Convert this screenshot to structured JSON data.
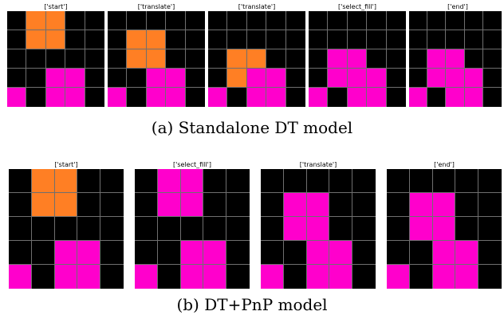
{
  "colors": {
    "0": "#000000",
    "1": "#ff7f24",
    "2": "#ff00cc"
  },
  "rows": [
    {
      "caption": "(a) Standalone DT model",
      "panels": [
        {
          "title": "['start']",
          "grid": [
            [
              0,
              1,
              1,
              0,
              0
            ],
            [
              0,
              1,
              1,
              0,
              0
            ],
            [
              0,
              0,
              0,
              0,
              0
            ],
            [
              0,
              0,
              2,
              2,
              0
            ],
            [
              2,
              0,
              2,
              2,
              0
            ]
          ]
        },
        {
          "title": "['translate']",
          "grid": [
            [
              0,
              0,
              0,
              0,
              0
            ],
            [
              0,
              1,
              1,
              0,
              0
            ],
            [
              0,
              1,
              1,
              0,
              0
            ],
            [
              0,
              0,
              2,
              2,
              0
            ],
            [
              2,
              0,
              2,
              2,
              0
            ]
          ]
        },
        {
          "title": "['translate']",
          "grid": [
            [
              0,
              0,
              0,
              0,
              0
            ],
            [
              0,
              0,
              0,
              0,
              0
            ],
            [
              0,
              1,
              1,
              0,
              0
            ],
            [
              0,
              1,
              2,
              2,
              0
            ],
            [
              2,
              0,
              2,
              2,
              0
            ]
          ]
        },
        {
          "title": "['select_fill']",
          "grid": [
            [
              0,
              0,
              0,
              0,
              0
            ],
            [
              0,
              0,
              0,
              0,
              0
            ],
            [
              0,
              2,
              2,
              0,
              0
            ],
            [
              0,
              2,
              2,
              2,
              0
            ],
            [
              2,
              0,
              2,
              2,
              0
            ]
          ]
        },
        {
          "title": "['end']",
          "grid": [
            [
              0,
              0,
              0,
              0,
              0
            ],
            [
              0,
              0,
              0,
              0,
              0
            ],
            [
              0,
              2,
              2,
              0,
              0
            ],
            [
              0,
              2,
              2,
              2,
              0
            ],
            [
              2,
              0,
              2,
              2,
              0
            ]
          ]
        }
      ]
    },
    {
      "caption": "(b) DT+PnP model",
      "panels": [
        {
          "title": "['start']",
          "grid": [
            [
              0,
              1,
              1,
              0,
              0
            ],
            [
              0,
              1,
              1,
              0,
              0
            ],
            [
              0,
              0,
              0,
              0,
              0
            ],
            [
              0,
              0,
              2,
              2,
              0
            ],
            [
              2,
              0,
              2,
              2,
              0
            ]
          ]
        },
        {
          "title": "['select_fill']",
          "grid": [
            [
              0,
              2,
              2,
              0,
              0
            ],
            [
              0,
              2,
              2,
              0,
              0
            ],
            [
              0,
              0,
              0,
              0,
              0
            ],
            [
              0,
              0,
              2,
              2,
              0
            ],
            [
              2,
              0,
              2,
              2,
              0
            ]
          ]
        },
        {
          "title": "['translate']",
          "grid": [
            [
              0,
              0,
              0,
              0,
              0
            ],
            [
              0,
              2,
              2,
              0,
              0
            ],
            [
              0,
              2,
              2,
              0,
              0
            ],
            [
              0,
              0,
              2,
              2,
              0
            ],
            [
              2,
              0,
              2,
              2,
              0
            ]
          ]
        },
        {
          "title": "['end']",
          "grid": [
            [
              0,
              0,
              0,
              0,
              0
            ],
            [
              0,
              2,
              2,
              0,
              0
            ],
            [
              0,
              2,
              2,
              0,
              0
            ],
            [
              0,
              0,
              2,
              2,
              0
            ],
            [
              2,
              0,
              2,
              2,
              0
            ]
          ]
        }
      ]
    }
  ]
}
